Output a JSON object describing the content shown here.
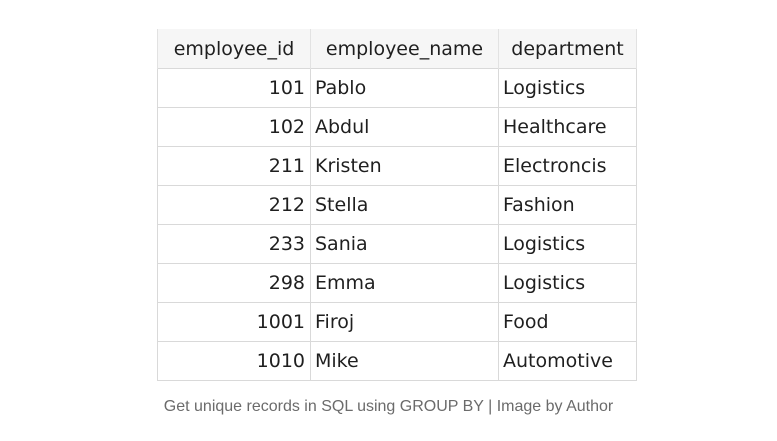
{
  "table": {
    "columns": [
      "employee_id",
      "employee_name",
      "department"
    ],
    "rows": [
      [
        "101",
        "Pablo",
        "Logistics"
      ],
      [
        "102",
        "Abdul",
        "Healthcare"
      ],
      [
        "211",
        "Kristen",
        "Electroncis"
      ],
      [
        "212",
        "Stella",
        "Fashion"
      ],
      [
        "233",
        "Sania",
        "Logistics"
      ],
      [
        "298",
        "Emma",
        "Logistics"
      ],
      [
        "1001",
        "Firoj",
        "Food"
      ],
      [
        "1010",
        "Mike",
        "Automotive"
      ]
    ]
  },
  "caption": "Get unique records in SQL using GROUP BY | Image by Author"
}
